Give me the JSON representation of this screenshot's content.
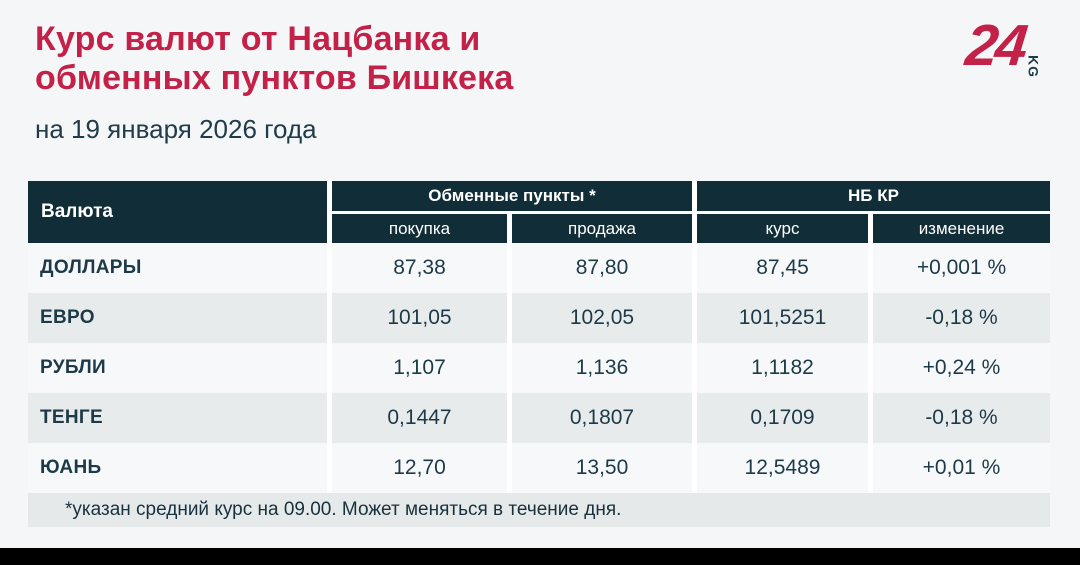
{
  "header": {
    "title_line1": "Курс валют от Нацбанка и",
    "title_line2": "обменных пунктов Бишкека",
    "subtitle": "на 19 января 2026 года"
  },
  "logo": {
    "number": "24",
    "country": "KG"
  },
  "chart_data": {
    "type": "table",
    "title": "Курс валют от Нацбанка и обменных пунктов Бишкека",
    "subtitle": "на 19 января 2026 года",
    "currency_column_label": "Валюта",
    "group_headers": {
      "exchange": "Обменные пункты *",
      "national_bank": "НБ КР"
    },
    "sub_headers": [
      "покупка",
      "продажа",
      "курс",
      "изменение"
    ],
    "rows": [
      {
        "currency": "ДОЛЛАРЫ",
        "buy": "87,38",
        "sell": "87,80",
        "rate": "87,45",
        "change": "+0,001 %"
      },
      {
        "currency": "ЕВРО",
        "buy": "101,05",
        "sell": "102,05",
        "rate": "101,5251",
        "change": "-0,18 %"
      },
      {
        "currency": "РУБЛИ",
        "buy": "1,107",
        "sell": "1,136",
        "rate": "1,1182",
        "change": "+0,24 %"
      },
      {
        "currency": "ТЕНГЕ",
        "buy": "0,1447",
        "sell": "0,1807",
        "rate": "0,1709",
        "change": "-0,18 %"
      },
      {
        "currency": "ЮАНЬ",
        "buy": "12,70",
        "sell": "13,50",
        "rate": "12,5489",
        "change": "+0,01 %"
      }
    ],
    "footnote": "*указан средний курс на 09.00. Может меняться в течение дня."
  },
  "colors": {
    "accent_red": "#c32148",
    "header_bg": "#112d38",
    "text_dark": "#1c3a47",
    "row_light": "#f7f8fa",
    "row_gray": "#e8ebec",
    "footnote_bg": "#e6e9ea",
    "page_bg": "#f5f6f8",
    "separator_white": "#ffffff",
    "bottom_bar": "#000000"
  }
}
